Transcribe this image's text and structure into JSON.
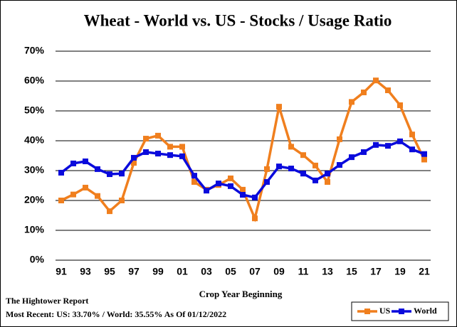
{
  "chart_data": {
    "type": "line",
    "title": "Wheat - World vs. US - Stocks / Usage Ratio",
    "x_label": "Crop Year Beginning",
    "source": "The Hightower Report",
    "note": "Most Recent: US: 33.70% / World: 35.55% As Of 01/12/2022",
    "categories": [
      "91",
      null,
      "93",
      null,
      "95",
      null,
      "97",
      null,
      "99",
      null,
      "01",
      null,
      "03",
      null,
      "05",
      null,
      "07",
      null,
      "09",
      null,
      "11",
      null,
      "13",
      null,
      "15",
      null,
      "17",
      null,
      "19",
      null,
      "21"
    ],
    "series": [
      {
        "name": "US",
        "color": "#f07f1e",
        "values": [
          20,
          22,
          24.3,
          21.5,
          16.4,
          20,
          32.6,
          40.7,
          41.7,
          38,
          38,
          26.2,
          23.6,
          25.2,
          27.4,
          23.6,
          14,
          30.5,
          51.4,
          38,
          35.2,
          31.7,
          26.2,
          40.5,
          53,
          56.2,
          60.2,
          56.9,
          51.9,
          42.1,
          33.7
        ]
      },
      {
        "name": "World",
        "color": "#0a0adc",
        "values": [
          29.3,
          32.4,
          33.1,
          30.5,
          28.8,
          29,
          34.3,
          36.2,
          35.7,
          35.2,
          34.8,
          28.3,
          23.3,
          25.7,
          24.8,
          21.9,
          21,
          26.2,
          31.4,
          30.7,
          29,
          26.7,
          29,
          31.9,
          34.5,
          36.2,
          38.6,
          38.3,
          39.8,
          37.1,
          35.55
        ]
      }
    ],
    "ylim": [
      0,
      70
    ],
    "yticks": [
      {
        "value": 0,
        "label": "0%"
      },
      {
        "value": 10,
        "label": "10%"
      },
      {
        "value": 20,
        "label": "20%"
      },
      {
        "value": 30,
        "label": "30%"
      },
      {
        "value": 40,
        "label": "40%"
      },
      {
        "value": 50,
        "label": "50%"
      },
      {
        "value": 60,
        "label": "60%"
      },
      {
        "value": 70,
        "label": "70%"
      }
    ],
    "grid": true,
    "legend": "bottom-right"
  }
}
